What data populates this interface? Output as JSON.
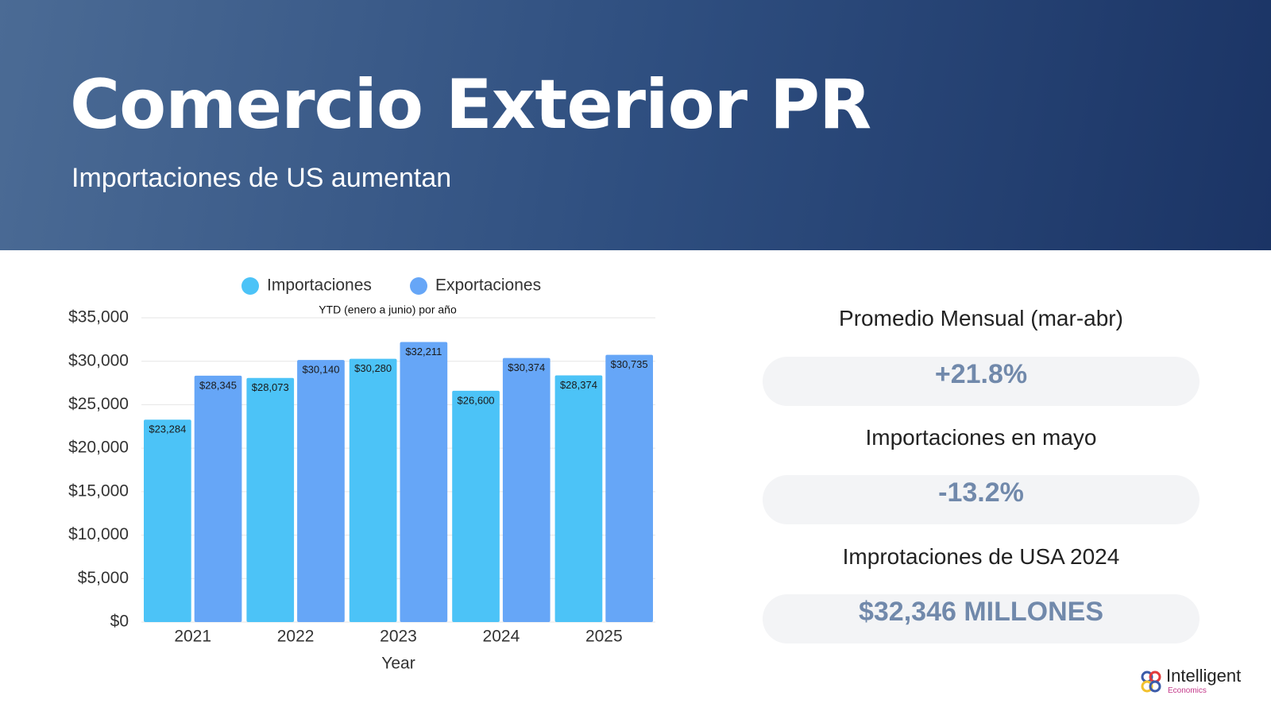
{
  "header": {
    "title": "Comercio Exterior PR",
    "subtitle": "Importaciones de US aumentan"
  },
  "chart_data": {
    "type": "bar",
    "note": "YTD (enero a junio) por año",
    "x_label": "Year",
    "categories": [
      "2021",
      "2022",
      "2023",
      "2024",
      "2025"
    ],
    "series": [
      {
        "name": "Importaciones",
        "color": "#4cc3f7",
        "values": [
          23284,
          28073,
          30280,
          26600,
          28374
        ],
        "value_labels": [
          "$23,284",
          "$28,073",
          "$30,280",
          "$26,600",
          "$28,374"
        ]
      },
      {
        "name": "Exportaciones",
        "color": "#66a6f7",
        "values": [
          28345,
          30140,
          32211,
          30374,
          30735
        ],
        "value_labels": [
          "$28,345",
          "$30,140",
          "$32,211",
          "$30,374",
          "$30,735"
        ]
      }
    ],
    "ylim": [
      0,
      35000
    ],
    "yticks": [
      {
        "value": 0,
        "label": "$0"
      },
      {
        "value": 5000,
        "label": "$5,000"
      },
      {
        "value": 10000,
        "label": "$10,000"
      },
      {
        "value": 15000,
        "label": "$15,000"
      },
      {
        "value": 20000,
        "label": "$20,000"
      },
      {
        "value": 25000,
        "label": "$25,000"
      },
      {
        "value": 30000,
        "label": "$30,000"
      },
      {
        "value": 35000,
        "label": "$35,000"
      }
    ],
    "grid": true,
    "legend": "top"
  },
  "kpis": [
    {
      "label": "Promedio Mensual (mar-abr)",
      "value": "+21.8%"
    },
    {
      "label": "Importaciones en mayo",
      "value": "-13.2%"
    },
    {
      "label": "Improtaciones de USA 2024",
      "value": "$32,346 MILLONES"
    }
  ],
  "logo": {
    "name": "Intelligent",
    "sub": "Economics"
  }
}
